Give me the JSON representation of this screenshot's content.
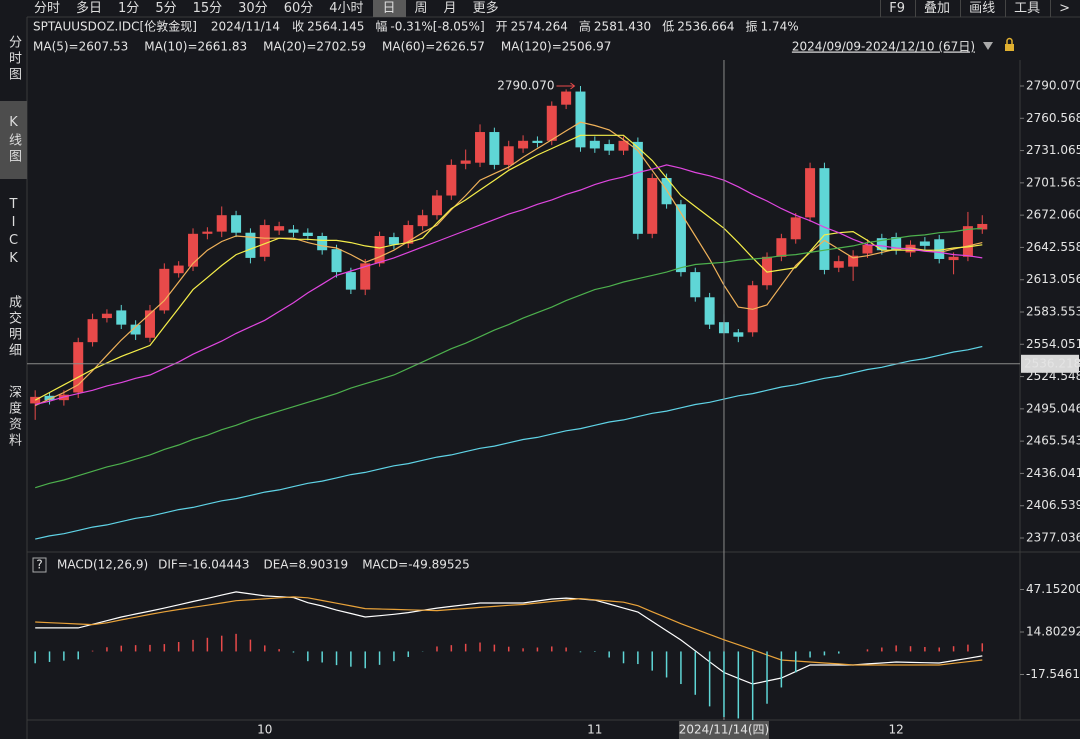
{
  "toolbar": {
    "periods": [
      "分时",
      "多日",
      "1分",
      "5分",
      "15分",
      "30分",
      "60分",
      "4小时",
      "日",
      "周",
      "月",
      "更多"
    ],
    "selected_index": 8,
    "tools": [
      "F9",
      "叠加",
      "画线",
      "工具",
      ">"
    ]
  },
  "sidebar": {
    "tabs": [
      "分时图",
      "K线图",
      "TICK",
      "成交明细",
      "深度资料"
    ],
    "selected_index": 1
  },
  "quote": {
    "symbol": "SPTAUUSDOZ.IDC[伦敦金现]",
    "date": "2024/11/14",
    "fields": [
      {
        "label": "收",
        "value": "2564.145",
        "color": "#3fbf6a"
      },
      {
        "label": "幅",
        "value": "-0.31%[-8.05%]",
        "color": "#3fbf6a"
      },
      {
        "label": "开",
        "value": "2574.264",
        "color": "#e84a4a"
      },
      {
        "label": "高",
        "value": "2581.430",
        "color": "#e84a4a"
      },
      {
        "label": "低",
        "value": "2536.664",
        "color": "#3fbf6a"
      },
      {
        "label": "振",
        "value": "1.74%",
        "color": "#e8e8e8"
      }
    ]
  },
  "range_label": "2024/09/09-2024/12/10 (67日)",
  "chart_data": [
    {
      "type": "candlestick",
      "up_color": "#e84a4a",
      "down_color": "#5fd6d6",
      "categories": [
        null,
        null,
        null,
        null,
        null,
        null,
        null,
        null,
        null,
        null,
        null,
        null,
        null,
        null,
        null,
        null,
        "10",
        null,
        null,
        null,
        null,
        null,
        null,
        null,
        null,
        null,
        null,
        null,
        null,
        null,
        null,
        null,
        null,
        null,
        null,
        null,
        null,
        null,
        null,
        "11",
        null,
        null,
        null,
        null,
        null,
        null,
        null,
        null,
        null,
        null,
        null,
        null,
        null,
        null,
        null,
        null,
        null,
        null,
        null,
        null,
        "12",
        null,
        null,
        null,
        null,
        null,
        null
      ],
      "open": [
        2500,
        2507,
        2503,
        2510,
        2556,
        2578,
        2585,
        2572,
        2560,
        2585,
        2619,
        2625,
        2655,
        2657,
        2672,
        2656,
        2634,
        2658,
        2659,
        2656,
        2653,
        2641,
        2620,
        2604,
        2628,
        2652,
        2646,
        2662,
        2672,
        2690,
        2719,
        2720,
        2748,
        2718,
        2733,
        2740,
        2740,
        2773,
        2785,
        2740,
        2737,
        2731,
        2739,
        2655,
        2706,
        2682,
        2620,
        2597,
        2574.264,
        2565,
        2565,
        2608,
        2634,
        2650,
        2670,
        2715,
        2624,
        2625,
        2637,
        2651,
        2652,
        2638,
        2648,
        2650,
        2631,
        2634,
        2659
      ],
      "high": [
        2512,
        2510,
        2512,
        2560,
        2582,
        2586,
        2590,
        2576,
        2590,
        2628,
        2630,
        2660,
        2661,
        2680,
        2676,
        2660,
        2668,
        2666,
        2663,
        2660,
        2656,
        2645,
        2624,
        2632,
        2657,
        2656,
        2667,
        2677,
        2695,
        2723,
        2732,
        2755,
        2752,
        2740,
        2745,
        2744,
        2776,
        2787,
        2790.07,
        2744,
        2741,
        2744,
        2743,
        2710,
        2710,
        2686,
        2624,
        2601,
        2581.43,
        2568,
        2612,
        2638,
        2655,
        2674,
        2720,
        2720,
        2635,
        2640,
        2650,
        2655,
        2656,
        2649,
        2652,
        2654,
        2638,
        2675,
        2672
      ],
      "low": [
        2485,
        2499,
        2498,
        2505,
        2552,
        2574,
        2568,
        2558,
        2556,
        2582,
        2615,
        2621,
        2650,
        2652,
        2652,
        2628,
        2630,
        2654,
        2652,
        2649,
        2636,
        2615,
        2600,
        2599,
        2625,
        2641,
        2642,
        2658,
        2668,
        2686,
        2714,
        2716,
        2714,
        2714,
        2729,
        2734,
        2736,
        2769,
        2730,
        2729,
        2727,
        2727,
        2650,
        2651,
        2678,
        2616,
        2593,
        2568,
        2536.664,
        2556,
        2561,
        2604,
        2630,
        2646,
        2666,
        2618,
        2620,
        2612,
        2633,
        2636,
        2636,
        2634,
        2640,
        2628,
        2618,
        2630,
        2655
      ],
      "close": [
        2506,
        2503,
        2508,
        2556,
        2577,
        2582,
        2572,
        2563,
        2585,
        2623,
        2626,
        2655,
        2657,
        2672,
        2656,
        2633,
        2663,
        2662,
        2656,
        2653,
        2640,
        2620,
        2604,
        2628,
        2653,
        2645,
        2663,
        2672,
        2690,
        2718,
        2722,
        2748,
        2718,
        2735,
        2740,
        2738,
        2772,
        2785,
        2734,
        2733,
        2731,
        2740,
        2655,
        2706,
        2682,
        2620,
        2597,
        2572,
        2564.145,
        2561,
        2608,
        2634,
        2651,
        2670,
        2715,
        2622,
        2630,
        2635,
        2645,
        2640,
        2640,
        2645,
        2644,
        2632,
        2634,
        2662,
        2664
      ],
      "series": [
        {
          "name": "MA(5)=2607.53",
          "color": "#f0b25a",
          "values": [
            2498,
            2504,
            2510,
            2517,
            2530,
            2544,
            2558,
            2570,
            2582,
            2594,
            2611,
            2628,
            2640,
            2648,
            2653,
            2652,
            2651,
            2651,
            2651,
            2647,
            2644,
            2642,
            2636,
            2629,
            2634,
            2640,
            2648,
            2656,
            2663,
            2677,
            2690,
            2704,
            2710,
            2716,
            2725,
            2733,
            2741,
            2749,
            2757,
            2754,
            2750,
            2741,
            2731,
            2713,
            2695,
            2674,
            2653,
            2632,
            2608,
            2588,
            2586,
            2590,
            2608,
            2626,
            2638,
            2649,
            2641,
            2633,
            2635,
            2638,
            2641,
            2642,
            2640,
            2638,
            2641,
            2644,
            2647
          ]
        },
        {
          "name": "MA(10)=2661.83",
          "color": "#f5ee4a",
          "values": [
            2503,
            2510,
            2517,
            2524,
            2531,
            2537,
            2543,
            2548,
            2553,
            2570,
            2587,
            2604,
            2615,
            2626,
            2636,
            2641,
            2646,
            2651,
            2650,
            2650,
            2649,
            2649,
            2647,
            2644,
            2642,
            2645,
            2647,
            2651,
            2665,
            2678,
            2686,
            2695,
            2704,
            2713,
            2720,
            2727,
            2733,
            2739,
            2745,
            2745,
            2745,
            2745,
            2734,
            2722,
            2706,
            2690,
            2680,
            2670,
            2660,
            2647,
            2633,
            2620,
            2622,
            2624,
            2639,
            2654,
            2656,
            2657,
            2649,
            2640,
            2640,
            2640,
            2640,
            2640,
            2642,
            2643,
            2645
          ]
        },
        {
          "name": "MA(20)=2702.59",
          "color": "#e046e0",
          "values": [
            2499,
            2502,
            2506,
            2509,
            2512,
            2516,
            2519,
            2523,
            2526,
            2532,
            2538,
            2545,
            2551,
            2557,
            2564,
            2570,
            2576,
            2584,
            2592,
            2601,
            2609,
            2617,
            2621,
            2625,
            2629,
            2633,
            2638,
            2643,
            2648,
            2653,
            2658,
            2663,
            2668,
            2673,
            2677,
            2682,
            2686,
            2691,
            2695,
            2700,
            2704,
            2707,
            2711,
            2714,
            2718,
            2715,
            2711,
            2708,
            2704,
            2698,
            2691,
            2685,
            2678,
            2672,
            2667,
            2661,
            2656,
            2650,
            2645,
            2644,
            2642,
            2641,
            2639,
            2638,
            2636,
            2635,
            2633
          ]
        },
        {
          "name": "MA(60)=2626.57",
          "color": "#4db04d",
          "values": [
            2423,
            2427,
            2430,
            2434,
            2438,
            2442,
            2445,
            2449,
            2453,
            2458,
            2462,
            2467,
            2471,
            2476,
            2480,
            2485,
            2489,
            2493,
            2497,
            2501,
            2505,
            2509,
            2514,
            2518,
            2522,
            2526,
            2532,
            2538,
            2544,
            2550,
            2555,
            2561,
            2567,
            2572,
            2578,
            2583,
            2588,
            2594,
            2599,
            2604,
            2607,
            2611,
            2614,
            2617,
            2620,
            2624,
            2627,
            2628,
            2629,
            2631,
            2632,
            2633,
            2635,
            2636,
            2638,
            2640,
            2642,
            2644,
            2647,
            2649,
            2651,
            2653,
            2654,
            2656,
            2657,
            2659,
            2660
          ]
        },
        {
          "name": "MA(120)=2506.97",
          "color": "#5fd3e6",
          "values": [
            2376,
            2379,
            2381,
            2384,
            2387,
            2389,
            2392,
            2395,
            2397,
            2400,
            2403,
            2405,
            2408,
            2411,
            2413,
            2416,
            2419,
            2421,
            2424,
            2427,
            2429,
            2432,
            2435,
            2437,
            2440,
            2443,
            2445,
            2448,
            2451,
            2453,
            2456,
            2459,
            2461,
            2464,
            2467,
            2469,
            2472,
            2475,
            2477,
            2480,
            2483,
            2485,
            2488,
            2491,
            2493,
            2496,
            2499,
            2501,
            2504,
            2507,
            2509,
            2512,
            2515,
            2517,
            2520,
            2523,
            2525,
            2528,
            2531,
            2533,
            2536,
            2539,
            2541,
            2544,
            2547,
            2549,
            2552
          ]
        }
      ],
      "ylim": [
        2366.07,
        2813.83
      ],
      "yticks": [
        {
          "value": 2790.07,
          "label": "2790.070"
        },
        2760.568,
        2731.065,
        2701.563,
        {
          "value": 2672.06,
          "label": "2672.060"
        },
        2642.558,
        2613.056,
        2583.553,
        2554.051,
        2524.548,
        2495.046,
        2465.543,
        2436.041,
        2406.539,
        2377.036
      ],
      "max_annotation": {
        "value": 2790.07,
        "label": "2790.070",
        "color": "#e84a4a"
      },
      "crosshair": {
        "index": 48,
        "x_label": "2024/11/14(四)",
        "y": 2536.218
      }
    },
    {
      "type": "macd",
      "title": "MACD(12,26,9)",
      "help": "?",
      "up_color": "#e84a4a",
      "down_color": "#5fd6d6",
      "series": [
        {
          "name": "DIF=-16.04443",
          "color": "#ffffff",
          "values": [
            17.9,
            17.9,
            17.9,
            17.9,
            20.7,
            23.4,
            26.2,
            28.5,
            30.7,
            33,
            35.5,
            38,
            40.4,
            42.9,
            45.3,
            43.8,
            42.3,
            41.7,
            41.1,
            37.1,
            34.6,
            31.5,
            28.9,
            26.2,
            27.2,
            28.3,
            29.6,
            31.3,
            33,
            34.3,
            35.6,
            36.9,
            36.9,
            36.9,
            36.9,
            38.4,
            39.9,
            40.6,
            39.9,
            39.1,
            36.1,
            33,
            30,
            22.9,
            15.8,
            8.7,
            0.5,
            -7.9,
            -16.04443,
            -20.4,
            -24.8,
            -22.5,
            -20.2,
            -15.3,
            -10.3,
            -10.3,
            -10.3,
            -10.3,
            -9.5,
            -8.8,
            -8,
            -8.3,
            -8.6,
            -8.8,
            -7,
            -5.2,
            -3.4
          ]
        },
        {
          "name": "DEA=8.90319",
          "color": "#e8a23a",
          "values": [
            22.4,
            21.9,
            21.4,
            20.9,
            20.4,
            21.8,
            24,
            26.1,
            28.2,
            30.2,
            31.9,
            33.6,
            35.2,
            36.9,
            38.6,
            39.3,
            40,
            40.8,
            41.5,
            40.8,
            38.8,
            36.7,
            34.7,
            32.6,
            32.3,
            32,
            31.7,
            31.4,
            31.1,
            31.9,
            32.7,
            33.5,
            34.3,
            35.1,
            35.7,
            36.9,
            38,
            39.1,
            40.2,
            39.3,
            38.4,
            37.5,
            34.8,
            30.2,
            25.7,
            21.1,
            17,
            13,
            8.90319,
            5.1,
            1.3,
            -2.6,
            -6.5,
            -7.3,
            -8,
            -8.8,
            -9.5,
            -10.3,
            -10.3,
            -10.3,
            -10.3,
            -10.3,
            -10.3,
            -10.3,
            -9,
            -7.8,
            -6.5
          ]
        },
        {
          "name": "MACD=-49.89525",
          "color": "#5fd6d6",
          "kind": "histogram",
          "values": [
            -9,
            -8,
            -7,
            -6,
            0.6,
            3.2,
            4.4,
            4.8,
            5,
            5.6,
            7.2,
            8.8,
            10.4,
            12,
            13.4,
            9,
            4.6,
            1.8,
            -0.8,
            -7.4,
            -8.4,
            -10.4,
            -11.6,
            -12.8,
            -10.2,
            -7.4,
            -4.2,
            -0.2,
            3.8,
            4.8,
            5.8,
            6.8,
            5.2,
            3.6,
            2.4,
            3,
            3.8,
            3,
            -0.6,
            -0.4,
            -4.6,
            -9,
            -9.6,
            -14.6,
            -19.8,
            -24.8,
            -33,
            -41.8,
            -49.89525,
            -51,
            -52.2,
            -39.8,
            -27.4,
            -16,
            -4.6,
            -3,
            -1.6,
            0,
            1.6,
            3,
            4.6,
            4,
            3.4,
            3,
            4,
            5.2,
            6.2
          ]
        }
      ],
      "ylim": [
        -53.7,
        58.19
      ],
      "yticks": [
        {
          "value": 47.152,
          "label": "47.15200"
        },
        14.80292,
        -17.5461
      ]
    }
  ]
}
